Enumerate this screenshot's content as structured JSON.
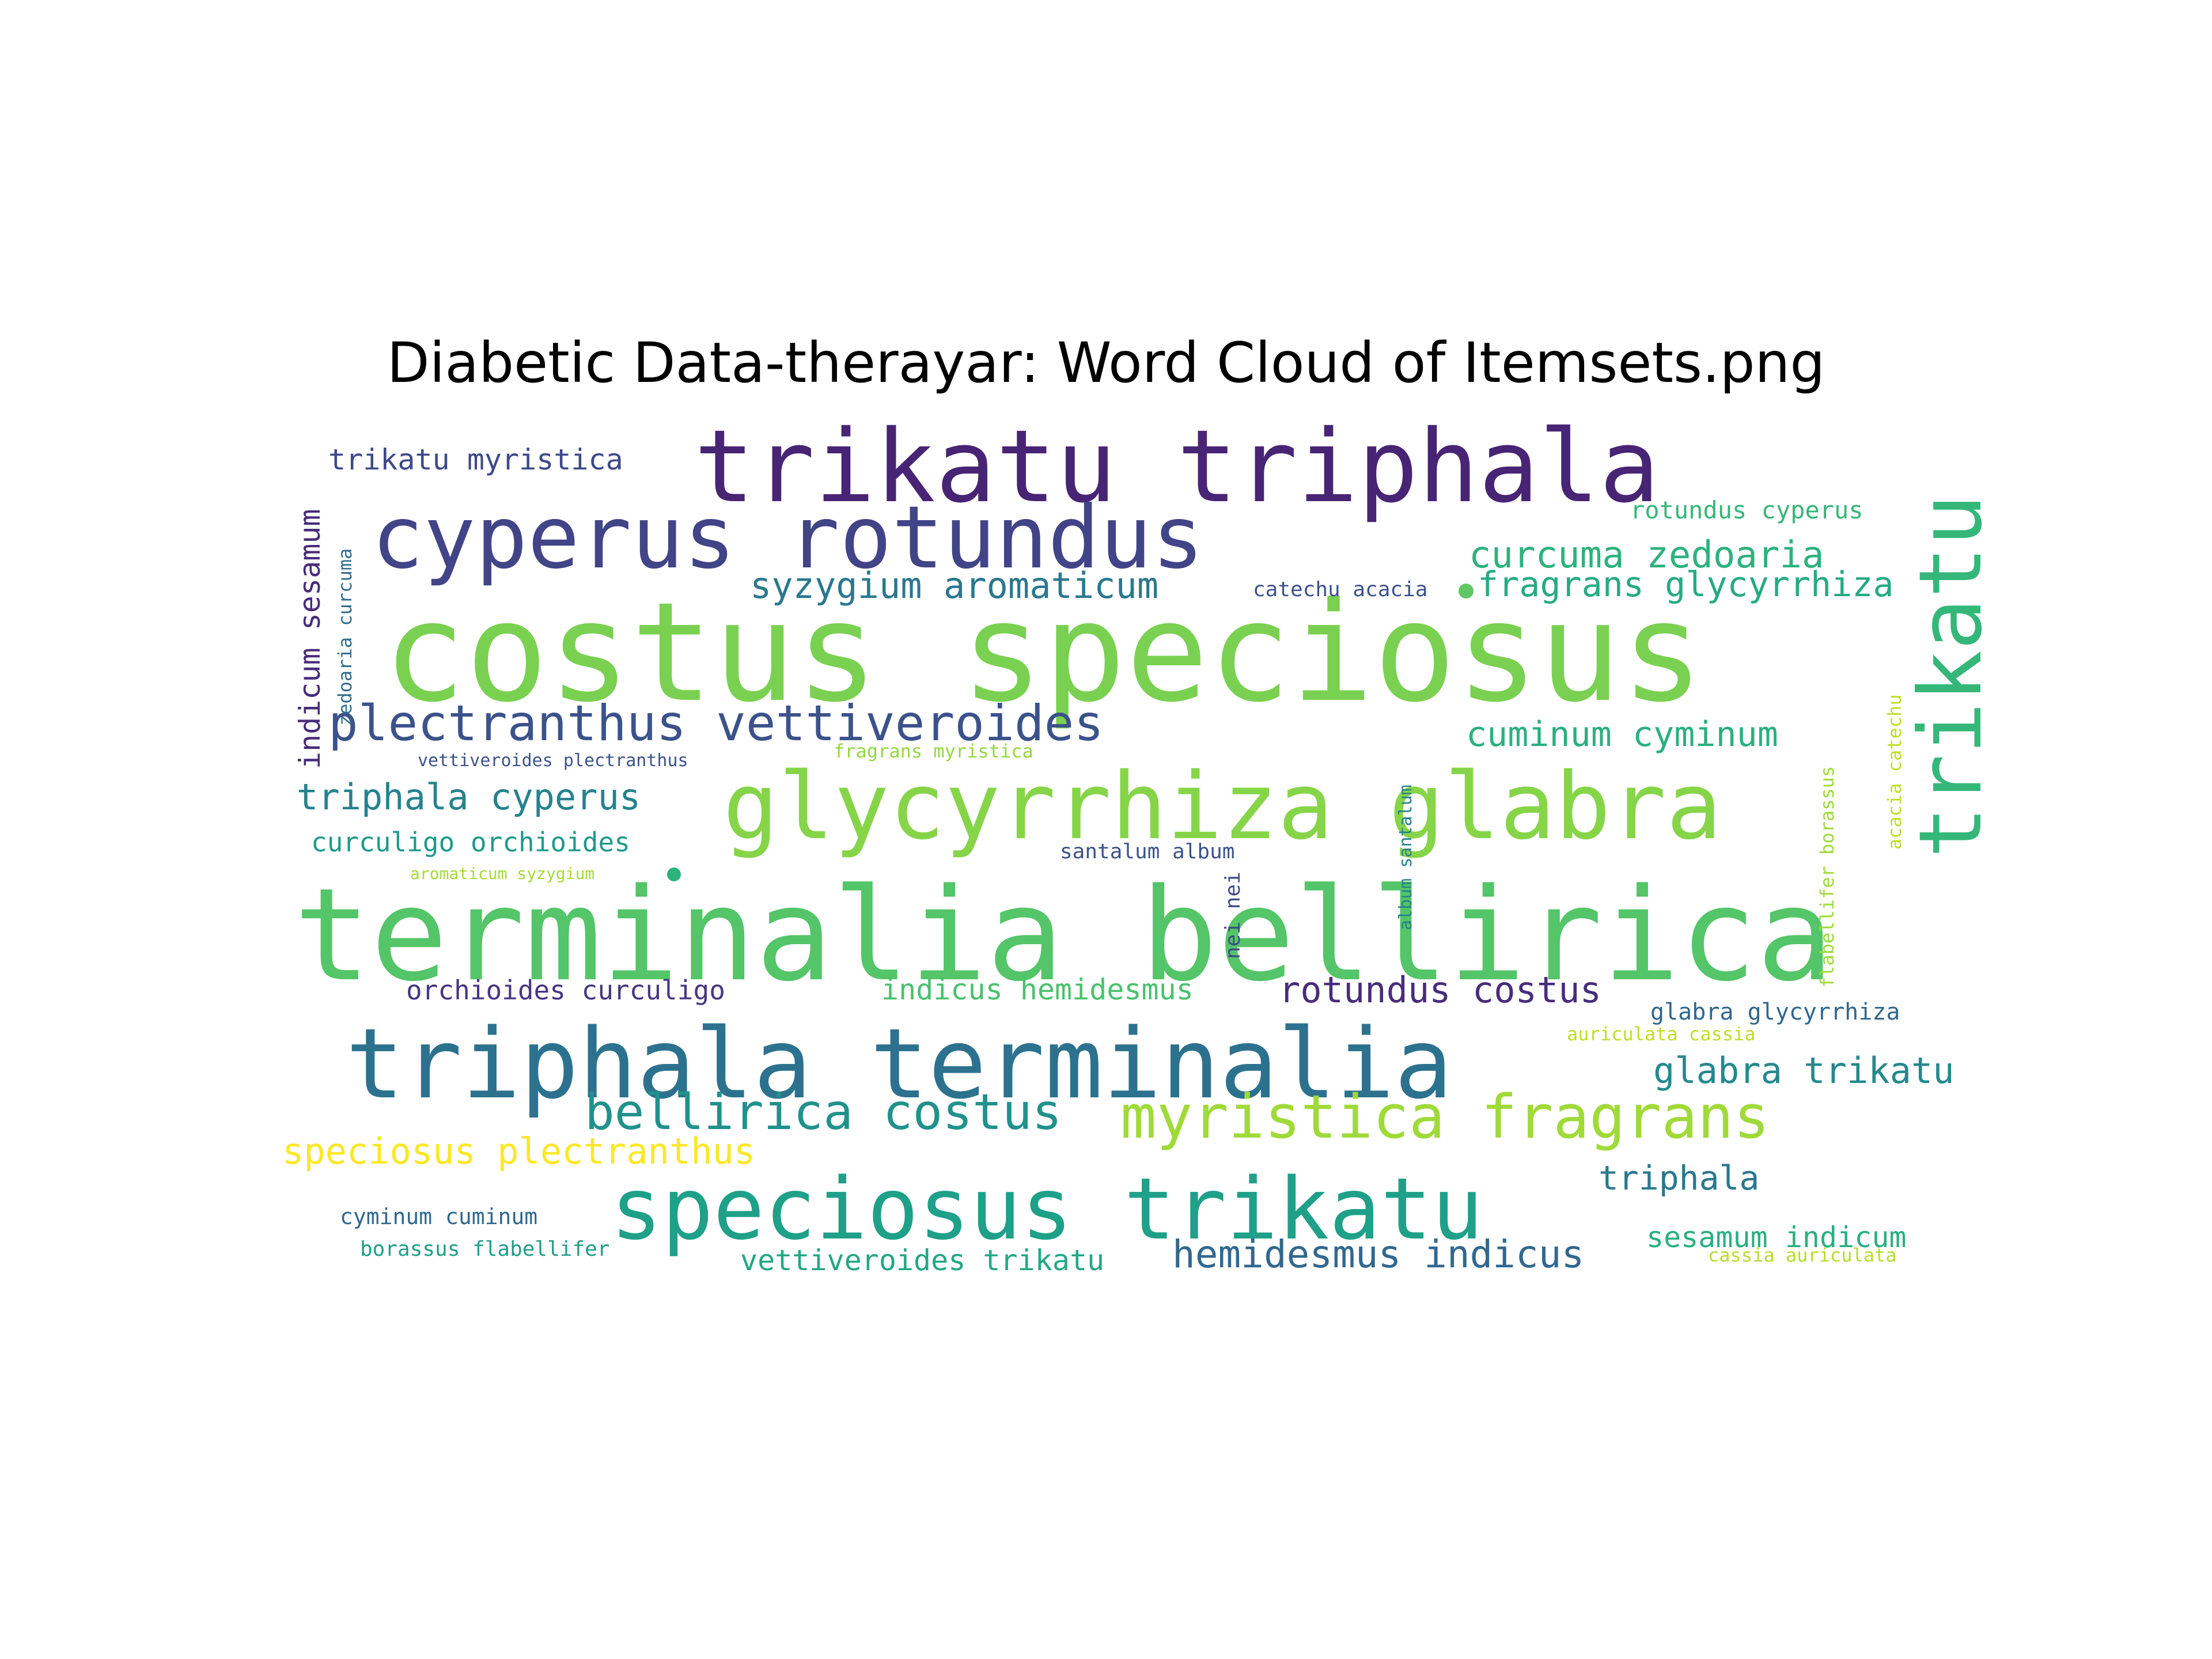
{
  "chart_data": {
    "type": "wordcloud",
    "title": "Diabetic Data-therayar: Word Cloud of Itemsets.png",
    "words": [
      {
        "text": "costus speciosus",
        "weight": 1.0,
        "color": "#7ad151",
        "rotated": false
      },
      {
        "text": "terminalia bellirica",
        "weight": 0.95,
        "color": "#54c568",
        "rotated": false
      },
      {
        "text": "trikatu triphala",
        "weight": 0.75,
        "color": "#482475",
        "rotated": false
      },
      {
        "text": "triphala terminalia",
        "weight": 0.72,
        "color": "#2c728e",
        "rotated": false
      },
      {
        "text": "glycyrrhiza glabra",
        "weight": 0.68,
        "color": "#86d549",
        "rotated": false
      },
      {
        "text": "cyperus rotundus",
        "weight": 0.66,
        "color": "#414487",
        "rotated": false
      },
      {
        "text": "speciosus trikatu",
        "weight": 0.64,
        "color": "#1fa088",
        "rotated": false
      },
      {
        "text": "trikatu",
        "weight": 0.64,
        "color": "#35b779",
        "rotated": true
      },
      {
        "text": "myristica fragrans",
        "weight": 0.45,
        "color": "#a0da39",
        "rotated": false
      },
      {
        "text": "plectranthus vettiveroides",
        "weight": 0.37,
        "color": "#3b528b",
        "rotated": false
      },
      {
        "text": "bellirica costus",
        "weight": 0.37,
        "color": "#21918c",
        "rotated": false
      },
      {
        "text": "hemidesmus indicus",
        "weight": 0.29,
        "color": "#31688e",
        "rotated": false
      },
      {
        "text": "curcuma zedoaria",
        "weight": 0.28,
        "color": "#2db27d",
        "rotated": false
      },
      {
        "text": "syzygium aromaticum",
        "weight": 0.27,
        "color": "#2a788e",
        "rotated": false
      },
      {
        "text": "fragrans glycyrrhiza",
        "weight": 0.27,
        "color": "#25ab82",
        "rotated": false
      },
      {
        "text": "cuminum cyminum",
        "weight": 0.27,
        "color": "#2ab07f",
        "rotated": false
      },
      {
        "text": "triphala cyperus",
        "weight": 0.27,
        "color": "#26828e",
        "rotated": false
      },
      {
        "text": "rotundus costus",
        "weight": 0.27,
        "color": "#472d7b",
        "rotated": false
      },
      {
        "text": "speciosus plectranthus",
        "weight": 0.27,
        "color": "#fde725",
        "rotated": false
      },
      {
        "text": "glabra trikatu",
        "weight": 0.26,
        "color": "#23898e",
        "rotated": false
      },
      {
        "text": "triphala",
        "weight": 0.26,
        "color": "#2a788e",
        "rotated": false
      },
      {
        "text": "vettiveroides trikatu",
        "weight": 0.22,
        "color": "#22a884",
        "rotated": false
      },
      {
        "text": "sesamum indicum",
        "weight": 0.22,
        "color": "#2ab07f",
        "rotated": false
      },
      {
        "text": "trikatu myristica",
        "weight": 0.22,
        "color": "#3e4989",
        "rotated": false
      },
      {
        "text": "indicum sesamum",
        "weight": 0.22,
        "color": "#472c7a",
        "rotated": true
      },
      {
        "text": "indicus hemidesmus",
        "weight": 0.21,
        "color": "#4ac16d",
        "rotated": false
      },
      {
        "text": "curculigo orchioides",
        "weight": 0.2,
        "color": "#1f9a8a",
        "rotated": false
      },
      {
        "text": "orchioides curculigo",
        "weight": 0.2,
        "color": "#453781",
        "rotated": false
      },
      {
        "text": "glabra glycyrrhiza",
        "weight": 0.19,
        "color": "#31668e",
        "rotated": false
      },
      {
        "text": "rotundus cyperus",
        "weight": 0.18,
        "color": "#35b779",
        "rotated": false
      },
      {
        "text": "catechu acacia",
        "weight": 0.16,
        "color": "#3b528b",
        "rotated": false
      },
      {
        "text": "cyminum cuminum",
        "weight": 0.16,
        "color": "#31688e",
        "rotated": false
      },
      {
        "text": "borassus flabellifer",
        "weight": 0.16,
        "color": "#1f9e89",
        "rotated": false
      },
      {
        "text": "santalum album",
        "weight": 0.16,
        "color": "#3b528b",
        "rotated": false
      },
      {
        "text": "nei nei",
        "weight": 0.16,
        "color": "#3e4a89",
        "rotated": true
      },
      {
        "text": "zedoaria curcuma",
        "weight": 0.15,
        "color": "#2f6c8e",
        "rotated": true
      },
      {
        "text": "acacia catechu",
        "weight": 0.15,
        "color": "#bddf26",
        "rotated": true
      },
      {
        "text": "flabellifer borassus",
        "weight": 0.15,
        "color": "#9fda3a",
        "rotated": true
      },
      {
        "text": "fragrans myristica",
        "weight": 0.14,
        "color": "#95d840",
        "rotated": false
      },
      {
        "text": "vettiveroides plectranthus",
        "weight": 0.13,
        "color": "#3b528b",
        "rotated": false
      },
      {
        "text": "album santalum",
        "weight": 0.13,
        "color": "#26828e",
        "rotated": true
      },
      {
        "text": "aromaticum syzygium",
        "weight": 0.12,
        "color": "#a5db36",
        "rotated": false
      },
      {
        "text": "auriculata cassia",
        "weight": 0.13,
        "color": "#c0df25",
        "rotated": false
      },
      {
        "text": "cassia auriculata",
        "weight": 0.13,
        "color": "#b5de2b",
        "rotated": false
      }
    ]
  }
}
